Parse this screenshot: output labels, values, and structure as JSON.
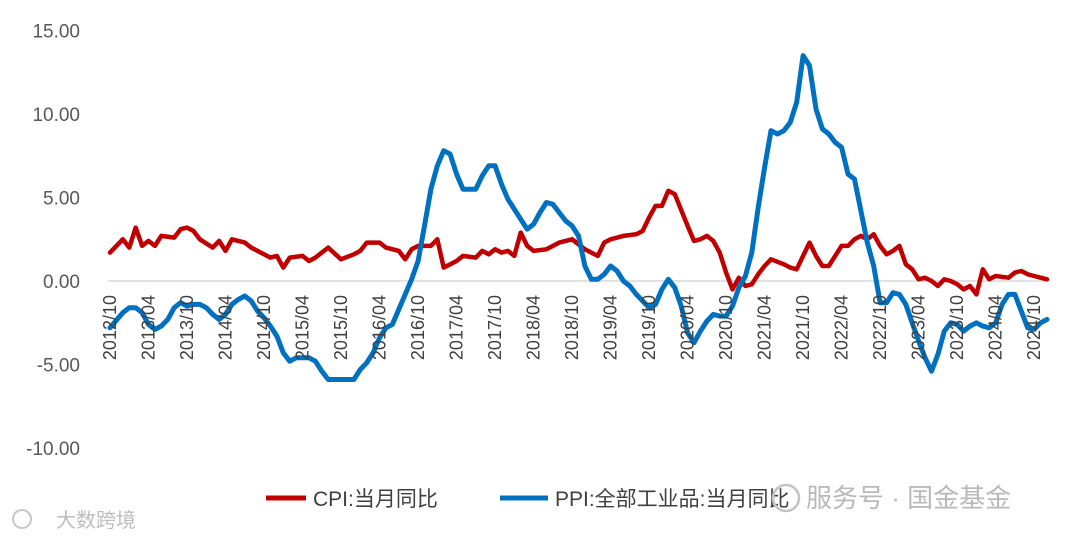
{
  "chart_data": {
    "type": "line",
    "title": "",
    "xlabel": "",
    "ylabel": "",
    "ylim": [
      -10,
      15
    ],
    "yticks": [
      15,
      10,
      5,
      0,
      -5,
      -10
    ],
    "ytick_labels": [
      "15.00",
      "10.00",
      "5.00",
      "0.00",
      "-5.00",
      "-10.00"
    ],
    "xtick_labels": [
      "2012/10",
      "2013/04",
      "2013/10",
      "2014/04",
      "2014/10",
      "2015/04",
      "2015/10",
      "2016/04",
      "2016/10",
      "2017/04",
      "2017/10",
      "2018/04",
      "2018/10",
      "2019/04",
      "2019/10",
      "2020/04",
      "2020/10",
      "2021/04",
      "2021/10",
      "2022/04",
      "2022/10",
      "2023/04",
      "2023/10",
      "2024/04",
      "2024/10"
    ],
    "gridlines": false,
    "legend_position": "bottom",
    "series": [
      {
        "name": "CPI:当月同比",
        "color": "#c00000",
        "points": [
          [
            "2012/10",
            1.7
          ],
          [
            "2012/12",
            2.5
          ],
          [
            "2013/01",
            2.0
          ],
          [
            "2013/02",
            3.2
          ],
          [
            "2013/03",
            2.1
          ],
          [
            "2013/04",
            2.4
          ],
          [
            "2013/05",
            2.1
          ],
          [
            "2013/06",
            2.7
          ],
          [
            "2013/08",
            2.6
          ],
          [
            "2013/09",
            3.1
          ],
          [
            "2013/10",
            3.2
          ],
          [
            "2013/11",
            3.0
          ],
          [
            "2013/12",
            2.5
          ],
          [
            "2014/02",
            2.0
          ],
          [
            "2014/03",
            2.4
          ],
          [
            "2014/04",
            1.8
          ],
          [
            "2014/05",
            2.5
          ],
          [
            "2014/07",
            2.3
          ],
          [
            "2014/08",
            2.0
          ],
          [
            "2014/10",
            1.6
          ],
          [
            "2014/11",
            1.4
          ],
          [
            "2014/12",
            1.5
          ],
          [
            "2015/01",
            0.8
          ],
          [
            "2015/02",
            1.4
          ],
          [
            "2015/04",
            1.5
          ],
          [
            "2015/05",
            1.2
          ],
          [
            "2015/06",
            1.4
          ],
          [
            "2015/08",
            2.0
          ],
          [
            "2015/10",
            1.3
          ],
          [
            "2015/12",
            1.6
          ],
          [
            "2016/01",
            1.8
          ],
          [
            "2016/02",
            2.3
          ],
          [
            "2016/04",
            2.3
          ],
          [
            "2016/05",
            2.0
          ],
          [
            "2016/07",
            1.8
          ],
          [
            "2016/08",
            1.3
          ],
          [
            "2016/09",
            1.9
          ],
          [
            "2016/10",
            2.1
          ],
          [
            "2016/12",
            2.1
          ],
          [
            "2017/01",
            2.5
          ],
          [
            "2017/02",
            0.8
          ],
          [
            "2017/04",
            1.2
          ],
          [
            "2017/05",
            1.5
          ],
          [
            "2017/07",
            1.4
          ],
          [
            "2017/08",
            1.8
          ],
          [
            "2017/09",
            1.6
          ],
          [
            "2017/10",
            1.9
          ],
          [
            "2017/11",
            1.7
          ],
          [
            "2017/12",
            1.8
          ],
          [
            "2018/01",
            1.5
          ],
          [
            "2018/02",
            2.9
          ],
          [
            "2018/03",
            2.1
          ],
          [
            "2018/04",
            1.8
          ],
          [
            "2018/06",
            1.9
          ],
          [
            "2018/08",
            2.3
          ],
          [
            "2018/10",
            2.5
          ],
          [
            "2018/12",
            1.9
          ],
          [
            "2019/01",
            1.7
          ],
          [
            "2019/02",
            1.5
          ],
          [
            "2019/03",
            2.3
          ],
          [
            "2019/04",
            2.5
          ],
          [
            "2019/06",
            2.7
          ],
          [
            "2019/08",
            2.8
          ],
          [
            "2019/09",
            3.0
          ],
          [
            "2019/10",
            3.8
          ],
          [
            "2019/11",
            4.5
          ],
          [
            "2019/12",
            4.5
          ],
          [
            "2020/01",
            5.4
          ],
          [
            "2020/02",
            5.2
          ],
          [
            "2020/04",
            3.3
          ],
          [
            "2020/05",
            2.4
          ],
          [
            "2020/06",
            2.5
          ],
          [
            "2020/07",
            2.7
          ],
          [
            "2020/08",
            2.4
          ],
          [
            "2020/09",
            1.7
          ],
          [
            "2020/10",
            0.5
          ],
          [
            "2020/11",
            -0.5
          ],
          [
            "2020/12",
            0.2
          ],
          [
            "2021/01",
            -0.3
          ],
          [
            "2021/02",
            -0.2
          ],
          [
            "2021/03",
            0.4
          ],
          [
            "2021/04",
            0.9
          ],
          [
            "2021/05",
            1.3
          ],
          [
            "2021/07",
            1.0
          ],
          [
            "2021/08",
            0.8
          ],
          [
            "2021/09",
            0.7
          ],
          [
            "2021/10",
            1.5
          ],
          [
            "2021/11",
            2.3
          ],
          [
            "2021/12",
            1.5
          ],
          [
            "2022/01",
            0.9
          ],
          [
            "2022/02",
            0.9
          ],
          [
            "2022/03",
            1.5
          ],
          [
            "2022/04",
            2.1
          ],
          [
            "2022/05",
            2.1
          ],
          [
            "2022/06",
            2.5
          ],
          [
            "2022/07",
            2.7
          ],
          [
            "2022/08",
            2.5
          ],
          [
            "2022/09",
            2.8
          ],
          [
            "2022/10",
            2.1
          ],
          [
            "2022/11",
            1.6
          ],
          [
            "2022/12",
            1.8
          ],
          [
            "2023/01",
            2.1
          ],
          [
            "2023/02",
            1.0
          ],
          [
            "2023/03",
            0.7
          ],
          [
            "2023/04",
            0.1
          ],
          [
            "2023/05",
            0.2
          ],
          [
            "2023/06",
            0.0
          ],
          [
            "2023/07",
            -0.3
          ],
          [
            "2023/08",
            0.1
          ],
          [
            "2023/09",
            0.0
          ],
          [
            "2023/10",
            -0.2
          ],
          [
            "2023/11",
            -0.5
          ],
          [
            "2023/12",
            -0.3
          ],
          [
            "2024/01",
            -0.8
          ],
          [
            "2024/02",
            0.7
          ],
          [
            "2024/03",
            0.1
          ],
          [
            "2024/04",
            0.3
          ],
          [
            "2024/06",
            0.2
          ],
          [
            "2024/07",
            0.5
          ],
          [
            "2024/08",
            0.6
          ],
          [
            "2024/09",
            0.4
          ],
          [
            "2024/10",
            0.3
          ],
          [
            "2024/11",
            0.2
          ],
          [
            "2024/12",
            0.1
          ]
        ]
      },
      {
        "name": "PPI:全部工业品:当月同比",
        "color": "#0070c0",
        "points": [
          [
            "2012/10",
            -2.8
          ],
          [
            "2012/12",
            -1.9
          ],
          [
            "2013/01",
            -1.6
          ],
          [
            "2013/02",
            -1.6
          ],
          [
            "2013/03",
            -1.9
          ],
          [
            "2013/04",
            -2.6
          ],
          [
            "2013/05",
            -2.9
          ],
          [
            "2013/06",
            -2.7
          ],
          [
            "2013/07",
            -2.3
          ],
          [
            "2013/08",
            -1.6
          ],
          [
            "2013/09",
            -1.3
          ],
          [
            "2013/10",
            -1.5
          ],
          [
            "2013/11",
            -1.4
          ],
          [
            "2013/12",
            -1.4
          ],
          [
            "2014/01",
            -1.6
          ],
          [
            "2014/02",
            -2.0
          ],
          [
            "2014/03",
            -2.3
          ],
          [
            "2014/04",
            -2.0
          ],
          [
            "2014/05",
            -1.4
          ],
          [
            "2014/06",
            -1.1
          ],
          [
            "2014/07",
            -0.9
          ],
          [
            "2014/08",
            -1.2
          ],
          [
            "2014/09",
            -1.8
          ],
          [
            "2014/10",
            -2.2
          ],
          [
            "2014/11",
            -2.7
          ],
          [
            "2014/12",
            -3.3
          ],
          [
            "2015/01",
            -4.3
          ],
          [
            "2015/02",
            -4.8
          ],
          [
            "2015/03",
            -4.6
          ],
          [
            "2015/04",
            -4.6
          ],
          [
            "2015/05",
            -4.6
          ],
          [
            "2015/06",
            -4.8
          ],
          [
            "2015/07",
            -5.4
          ],
          [
            "2015/08",
            -5.9
          ],
          [
            "2015/09",
            -5.9
          ],
          [
            "2015/10",
            -5.9
          ],
          [
            "2015/11",
            -5.9
          ],
          [
            "2015/12",
            -5.9
          ],
          [
            "2016/01",
            -5.3
          ],
          [
            "2016/02",
            -4.9
          ],
          [
            "2016/03",
            -4.3
          ],
          [
            "2016/04",
            -3.4
          ],
          [
            "2016/05",
            -2.8
          ],
          [
            "2016/06",
            -2.6
          ],
          [
            "2016/07",
            -1.7
          ],
          [
            "2016/08",
            -0.8
          ],
          [
            "2016/09",
            0.1
          ],
          [
            "2016/10",
            1.2
          ],
          [
            "2016/11",
            3.3
          ],
          [
            "2016/12",
            5.5
          ],
          [
            "2017/01",
            6.9
          ],
          [
            "2017/02",
            7.8
          ],
          [
            "2017/03",
            7.6
          ],
          [
            "2017/04",
            6.4
          ],
          [
            "2017/05",
            5.5
          ],
          [
            "2017/06",
            5.5
          ],
          [
            "2017/07",
            5.5
          ],
          [
            "2017/08",
            6.3
          ],
          [
            "2017/09",
            6.9
          ],
          [
            "2017/10",
            6.9
          ],
          [
            "2017/11",
            5.8
          ],
          [
            "2017/12",
            4.9
          ],
          [
            "2018/01",
            4.3
          ],
          [
            "2018/02",
            3.7
          ],
          [
            "2018/03",
            3.1
          ],
          [
            "2018/04",
            3.4
          ],
          [
            "2018/05",
            4.1
          ],
          [
            "2018/06",
            4.7
          ],
          [
            "2018/07",
            4.6
          ],
          [
            "2018/08",
            4.1
          ],
          [
            "2018/09",
            3.6
          ],
          [
            "2018/10",
            3.3
          ],
          [
            "2018/11",
            2.7
          ],
          [
            "2018/12",
            0.9
          ],
          [
            "2019/01",
            0.1
          ],
          [
            "2019/02",
            0.1
          ],
          [
            "2019/03",
            0.4
          ],
          [
            "2019/04",
            0.9
          ],
          [
            "2019/05",
            0.6
          ],
          [
            "2019/06",
            0.0
          ],
          [
            "2019/07",
            -0.3
          ],
          [
            "2019/08",
            -0.8
          ],
          [
            "2019/09",
            -1.2
          ],
          [
            "2019/10",
            -1.6
          ],
          [
            "2019/11",
            -1.4
          ],
          [
            "2019/12",
            -0.5
          ],
          [
            "2020/01",
            0.1
          ],
          [
            "2020/02",
            -0.4
          ],
          [
            "2020/03",
            -1.5
          ],
          [
            "2020/04",
            -3.1
          ],
          [
            "2020/05",
            -3.7
          ],
          [
            "2020/06",
            -3.0
          ],
          [
            "2020/07",
            -2.4
          ],
          [
            "2020/08",
            -2.0
          ],
          [
            "2020/09",
            -2.1
          ],
          [
            "2020/10",
            -2.1
          ],
          [
            "2020/11",
            -1.5
          ],
          [
            "2020/12",
            -0.4
          ],
          [
            "2021/01",
            0.3
          ],
          [
            "2021/02",
            1.7
          ],
          [
            "2021/03",
            4.4
          ],
          [
            "2021/04",
            6.8
          ],
          [
            "2021/05",
            9.0
          ],
          [
            "2021/06",
            8.8
          ],
          [
            "2021/07",
            9.0
          ],
          [
            "2021/08",
            9.5
          ],
          [
            "2021/09",
            10.7
          ],
          [
            "2021/10",
            13.5
          ],
          [
            "2021/11",
            12.9
          ],
          [
            "2021/12",
            10.3
          ],
          [
            "2022/01",
            9.1
          ],
          [
            "2022/02",
            8.8
          ],
          [
            "2022/03",
            8.3
          ],
          [
            "2022/04",
            8.0
          ],
          [
            "2022/05",
            6.4
          ],
          [
            "2022/06",
            6.1
          ],
          [
            "2022/07",
            4.2
          ],
          [
            "2022/08",
            2.3
          ],
          [
            "2022/09",
            0.9
          ],
          [
            "2022/10",
            -1.3
          ],
          [
            "2022/11",
            -1.3
          ],
          [
            "2022/12",
            -0.7
          ],
          [
            "2023/01",
            -0.8
          ],
          [
            "2023/02",
            -1.4
          ],
          [
            "2023/03",
            -2.5
          ],
          [
            "2023/04",
            -3.6
          ],
          [
            "2023/05",
            -4.6
          ],
          [
            "2023/06",
            -5.4
          ],
          [
            "2023/07",
            -4.4
          ],
          [
            "2023/08",
            -3.0
          ],
          [
            "2023/09",
            -2.5
          ],
          [
            "2023/10",
            -2.6
          ],
          [
            "2023/11",
            -3.0
          ],
          [
            "2023/12",
            -2.7
          ],
          [
            "2024/01",
            -2.5
          ],
          [
            "2024/02",
            -2.7
          ],
          [
            "2024/03",
            -2.8
          ],
          [
            "2024/04",
            -2.5
          ],
          [
            "2024/05",
            -1.4
          ],
          [
            "2024/06",
            -0.8
          ],
          [
            "2024/07",
            -0.8
          ],
          [
            "2024/08",
            -1.8
          ],
          [
            "2024/09",
            -2.8
          ],
          [
            "2024/10",
            -2.9
          ],
          [
            "2024/11",
            -2.5
          ],
          [
            "2024/12",
            -2.3
          ]
        ]
      }
    ]
  },
  "watermarks": {
    "left": "大数跨境",
    "right": "服务号 · 国金基金"
  },
  "colors": {
    "axis": "#d9d9d9",
    "cpi": "#c00000",
    "ppi": "#0070c0"
  }
}
